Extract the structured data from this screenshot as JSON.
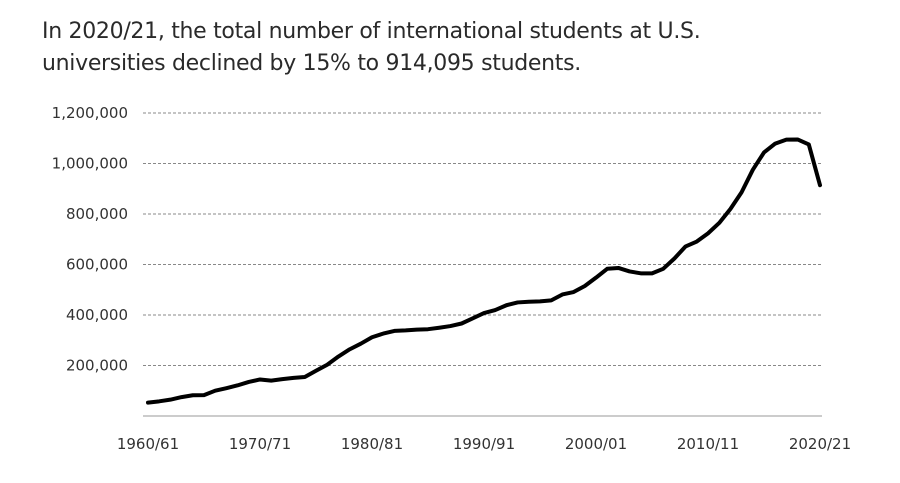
{
  "title_lines": [
    "In 2020/21, the total number of international students at U.S.",
    "universities declined by 15% to 914,095 students."
  ],
  "chart_data": {
    "type": "line",
    "title": "In 2020/21, the total number of international students at U.S. universities declined by 15% to 914,095 students.",
    "xlabel": "",
    "ylabel": "",
    "ylim": [
      0,
      1200000
    ],
    "grid": true,
    "legend": "none",
    "line_color": "#000000",
    "x_tick_labels": [
      "1960/61",
      "1970/71",
      "1980/81",
      "1990/91",
      "2000/01",
      "2010/11",
      "2020/21"
    ],
    "y_ticks": [
      {
        "value": 200000,
        "label": "200,000"
      },
      {
        "value": 400000,
        "label": "400,000"
      },
      {
        "value": 600000,
        "label": "600,000"
      },
      {
        "value": 800000,
        "label": "800,000"
      },
      {
        "value": 1000000,
        "label": "1,000,000"
      },
      {
        "value": 1200000,
        "label": "1,200,000"
      }
    ],
    "series": [
      {
        "x": [
          "1960/61",
          "1961/62",
          "1962/63",
          "1963/64",
          "1964/65",
          "1965/66",
          "1966/67",
          "1967/68",
          "1968/69",
          "1969/70",
          "1970/71",
          "1971/72",
          "1972/73",
          "1973/74",
          "1974/75",
          "1975/76",
          "1976/77",
          "1977/78",
          "1978/79",
          "1979/80",
          "1980/81",
          "1981/82",
          "1982/83",
          "1983/84",
          "1984/85",
          "1985/86",
          "1986/87",
          "1987/88",
          "1988/89",
          "1989/90",
          "1990/91",
          "1991/92",
          "1992/93",
          "1993/94",
          "1994/95",
          "1995/96",
          "1996/97",
          "1997/98",
          "1998/99",
          "1999/00",
          "2000/01",
          "2001/02",
          "2002/03",
          "2003/04",
          "2004/05",
          "2005/06",
          "2006/07",
          "2007/08",
          "2008/09",
          "2009/10",
          "2010/11",
          "2011/12",
          "2012/13",
          "2013/14",
          "2014/15",
          "2015/16",
          "2016/17",
          "2017/18",
          "2018/19",
          "2019/20",
          "2020/21"
        ],
        "values": [
          53107,
          58086,
          64705,
          74814,
          82045,
          82709,
          100262,
          110315,
          121362,
          134959,
          144708,
          140126,
          146097,
          151066,
          154580,
          179344,
          203068,
          235509,
          263938,
          286343,
          311882,
          326299,
          336985,
          338894,
          342113,
          343777,
          349609,
          356187,
          366354,
          386851,
          407529,
          419585,
          438618,
          449749,
          452635,
          453787,
          457984,
          481280,
          490933,
          514723,
          547867,
          582996,
          586323,
          572509,
          565039,
          564766,
          582984,
          623805,
          671616,
          690923,
          723277,
          764495,
          819644,
          886052,
          974926,
          1043839,
          1078822,
          1094792,
          1095299,
          1075496,
          914095
        ]
      }
    ]
  }
}
